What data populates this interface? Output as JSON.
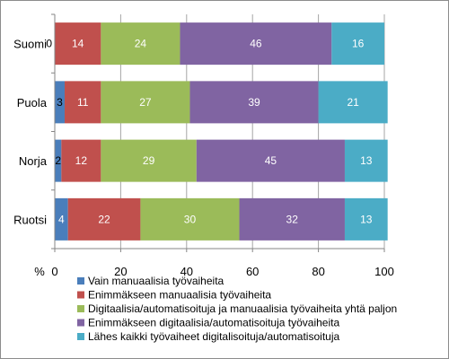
{
  "chart_data": {
    "type": "bar",
    "orientation": "horizontal",
    "stacked": true,
    "categories": [
      "Suomi",
      "Puola",
      "Norja",
      "Ruotsi"
    ],
    "series": [
      {
        "name": "Vain manuaalisia työvaiheita",
        "color": "#4a7ebb",
        "values": [
          0,
          3,
          2,
          4
        ]
      },
      {
        "name": "Enimmäkseen manuaalisia työvaiheita",
        "color": "#c0504d",
        "values": [
          14,
          11,
          12,
          22
        ]
      },
      {
        "name": "Digitaalisia/automatisoituja ja manuaalisia työvaiheita yhtä paljon",
        "color": "#9bbb59",
        "values": [
          24,
          27,
          29,
          30
        ]
      },
      {
        "name": "Enimmäkseen digitaalisia/automatisoituja työvaiheita",
        "color": "#8064a2",
        "values": [
          46,
          39,
          45,
          32
        ]
      },
      {
        "name": "Lähes kaikki työvaiheet digitalisoituja/automatisoituja",
        "color": "#4bacc6",
        "values": [
          16,
          21,
          13,
          13
        ]
      }
    ],
    "xlim": [
      0,
      100
    ],
    "xticks": [
      0,
      20,
      40,
      60,
      80,
      100
    ],
    "xunit": "%",
    "grid": true,
    "legend_position": "bottom"
  }
}
